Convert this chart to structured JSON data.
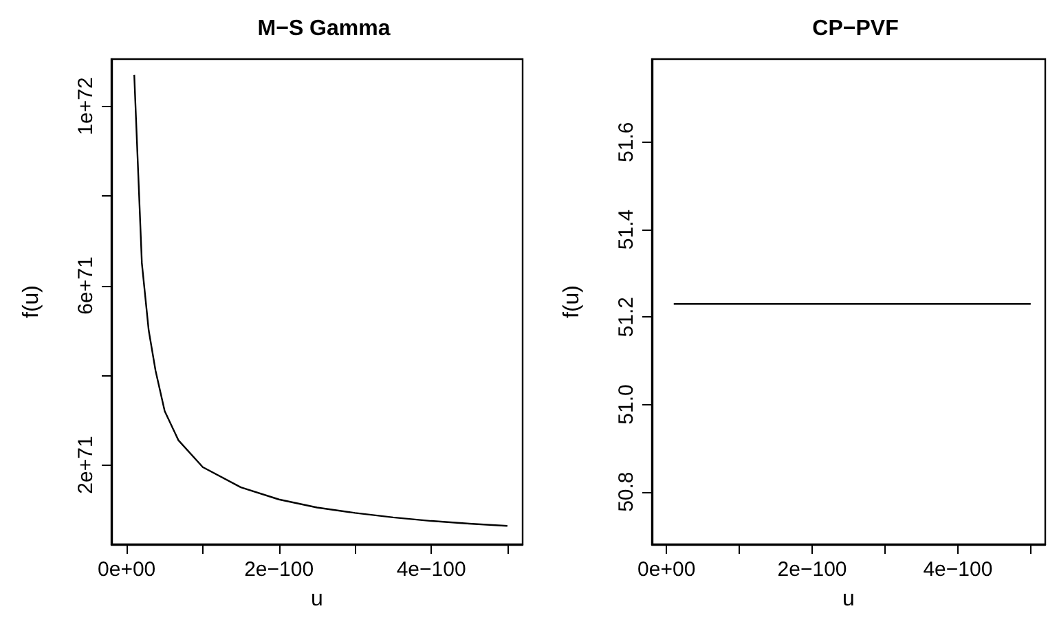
{
  "chart_data": [
    {
      "type": "line",
      "title": "M−S Gamma",
      "xlabel": "u",
      "ylabel": "f(u)",
      "grid": false,
      "x": [
        1e-101,
        2e-101,
        2.9e-101,
        3.8e-101,
        5e-101,
        6.8e-101,
        1e-100,
        1.5e-100,
        2e-100,
        2.5e-100,
        3e-100,
        3.5e-100,
        4e-100,
        4.5e-100,
        5e-100
      ],
      "series": [
        {
          "color": "#000000",
          "values": [
            1.07e+72,
            6.5e+71,
            5e+71,
            4.1e+71,
            3.2e+71,
            2.55e+71,
            1.95e+71,
            1.5e+71,
            1.23e+71,
            1.05e+71,
            9.3e+70,
            8.3e+70,
            7.5e+70,
            6.9e+70,
            6.4e+70
          ]
        }
      ],
      "xlim": [
        -2e-101,
        5.2e-100
      ],
      "xticks": [
        {
          "value": 0,
          "label": "0e+00"
        },
        {
          "value": 1e-100,
          "label": null
        },
        {
          "value": 2e-100,
          "label": "2e−100"
        },
        {
          "value": 3e-100,
          "label": null
        },
        {
          "value": 4e-100,
          "label": "4e−100"
        },
        {
          "value": 5e-100,
          "label": null
        }
      ],
      "ylim": [
        2.3e+70,
        1.105e+72
      ],
      "yticks": [
        {
          "value": 2e+71,
          "label": "2e+71"
        },
        {
          "value": 4e+71,
          "label": null
        },
        {
          "value": 6e+71,
          "label": "6e+71"
        },
        {
          "value": 8e+71,
          "label": null
        },
        {
          "value": 1e+72,
          "label": "1e+72"
        }
      ]
    },
    {
      "type": "line",
      "title": "CP−PVF",
      "xlabel": "u",
      "ylabel": "f(u)",
      "grid": false,
      "x": [
        1e-101,
        5e-100
      ],
      "series": [
        {
          "color": "#000000",
          "values": [
            51.23,
            51.23
          ]
        }
      ],
      "xlim": [
        -2e-101,
        5.2e-100
      ],
      "xticks": [
        {
          "value": 0,
          "label": "0e+00"
        },
        {
          "value": 1e-100,
          "label": null
        },
        {
          "value": 2e-100,
          "label": "2e−100"
        },
        {
          "value": 3e-100,
          "label": null
        },
        {
          "value": 4e-100,
          "label": "4e−100"
        },
        {
          "value": 5e-100,
          "label": null
        }
      ],
      "ylim": [
        50.68,
        51.79
      ],
      "yticks": [
        50.8,
        {
          "value": 51,
          "label": "51.0"
        },
        51.2,
        51.4,
        51.6
      ]
    }
  ]
}
